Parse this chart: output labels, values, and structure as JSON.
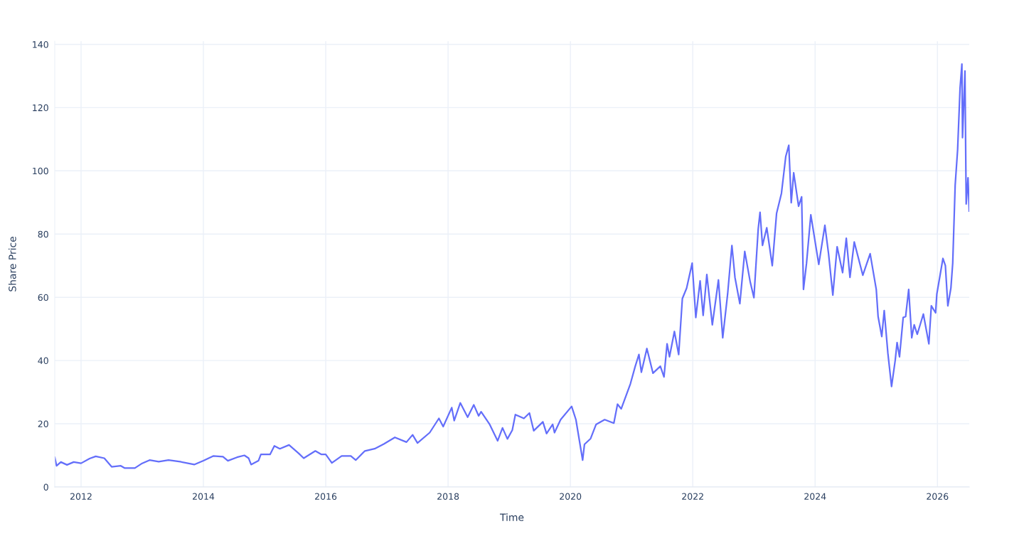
{
  "chart_data": {
    "type": "line",
    "xlabel": "Time",
    "ylabel": "Share Price",
    "series": [
      {
        "color": "#636efa",
        "x": [
          2011.57,
          2011.6,
          2011.67,
          2011.77,
          2011.88,
          2012.0,
          2012.14,
          2012.24,
          2012.38,
          2012.5,
          2012.65,
          2012.71,
          2012.88,
          2013.0,
          2013.12,
          2013.27,
          2013.43,
          2013.62,
          2013.85,
          2014.0,
          2014.16,
          2014.32,
          2014.4,
          2014.55,
          2014.67,
          2014.74,
          2014.78,
          2014.9,
          2014.94,
          2015.09,
          2015.16,
          2015.25,
          2015.4,
          2015.56,
          2015.64,
          2015.83,
          2015.93,
          2016.0,
          2016.1,
          2016.26,
          2016.41,
          2016.49,
          2016.64,
          2016.8,
          2016.95,
          2017.13,
          2017.32,
          2017.42,
          2017.5,
          2017.7,
          2017.85,
          2017.92,
          2018.06,
          2018.1,
          2018.2,
          2018.32,
          2018.42,
          2018.5,
          2018.54,
          2018.68,
          2018.81,
          2018.89,
          2018.97,
          2019.05,
          2019.1,
          2019.24,
          2019.33,
          2019.4,
          2019.55,
          2019.61,
          2019.71,
          2019.74,
          2019.84,
          2020.02,
          2020.09,
          2020.2,
          2020.23,
          2020.33,
          2020.42,
          2020.56,
          2020.71,
          2020.77,
          2020.83,
          2020.98,
          2021.06,
          2021.12,
          2021.16,
          2021.25,
          2021.35,
          2021.47,
          2021.53,
          2021.58,
          2021.62,
          2021.7,
          2021.77,
          2021.83,
          2021.9,
          2021.99,
          2022.05,
          2022.12,
          2022.17,
          2022.23,
          2022.32,
          2022.42,
          2022.49,
          2022.57,
          2022.64,
          2022.69,
          2022.77,
          2022.85,
          2022.94,
          2023.0,
          2023.07,
          2023.1,
          2023.14,
          2023.21,
          2023.3,
          2023.37,
          2023.45,
          2023.52,
          2023.57,
          2023.61,
          2023.65,
          2023.73,
          2023.78,
          2023.81,
          2023.86,
          2023.93,
          2024.06,
          2024.16,
          2024.22,
          2024.29,
          2024.36,
          2024.45,
          2024.51,
          2024.57,
          2024.64,
          2024.78,
          2024.9,
          2025.0,
          2025.03,
          2025.09,
          2025.13,
          2025.19,
          2025.25,
          2025.31,
          2025.34,
          2025.38,
          2025.44,
          2025.48,
          2025.53,
          2025.58,
          2025.62,
          2025.67,
          2025.77,
          2025.86,
          2025.9,
          2025.97,
          2025.99,
          2026.09,
          2026.13,
          2026.17,
          2026.22,
          2026.25,
          2026.29,
          2026.33,
          2026.37,
          2026.4,
          2026.41,
          2026.45,
          2026.47,
          2026.5,
          2026.52
        ],
        "values": [
          9.4,
          6.7,
          7.9,
          7.0,
          7.9,
          7.5,
          9.0,
          9.7,
          9.1,
          6.4,
          6.7,
          6.0,
          6.0,
          7.5,
          8.5,
          8.0,
          8.5,
          8.0,
          7.1,
          8.3,
          9.8,
          9.6,
          8.3,
          9.4,
          10.0,
          9.1,
          7.1,
          8.3,
          10.3,
          10.3,
          13.0,
          12.1,
          13.3,
          10.6,
          9.1,
          11.4,
          10.3,
          10.3,
          7.6,
          9.8,
          9.8,
          8.5,
          11.4,
          12.1,
          13.6,
          15.7,
          14.2,
          16.5,
          13.9,
          17.2,
          21.7,
          19.1,
          25.1,
          21.0,
          26.6,
          22.1,
          26.0,
          22.5,
          23.8,
          19.8,
          14.6,
          18.7,
          15.2,
          18.0,
          22.9,
          21.7,
          23.4,
          17.8,
          20.6,
          16.9,
          19.8,
          17.2,
          21.3,
          25.5,
          21.3,
          8.5,
          13.5,
          15.3,
          19.8,
          21.3,
          20.2,
          26.2,
          24.7,
          32.6,
          38.2,
          41.9,
          36.3,
          43.8,
          36.0,
          38.2,
          34.8,
          45.3,
          41.2,
          49.2,
          41.9,
          59.6,
          62.9,
          70.8,
          53.6,
          65.2,
          54.3,
          67.2,
          51.3,
          65.5,
          47.2,
          61.0,
          76.4,
          66.3,
          58.0,
          74.5,
          64.8,
          59.9,
          81.6,
          86.9,
          76.4,
          82.0,
          70.0,
          86.5,
          92.9,
          104.5,
          108.1,
          89.9,
          99.4,
          88.8,
          91.8,
          62.5,
          70.8,
          86.1,
          70.4,
          82.8,
          73.8,
          60.7,
          76.0,
          67.8,
          78.7,
          66.3,
          77.5,
          67.0,
          73.8,
          62.5,
          53.9,
          47.6,
          55.8,
          42.3,
          31.8,
          40.1,
          45.7,
          41.2,
          53.6,
          53.9,
          62.5,
          47.2,
          51.3,
          48.3,
          54.7,
          45.3,
          57.3,
          55.1,
          61.0,
          72.3,
          70.0,
          57.3,
          62.9,
          70.8,
          95.5,
          106.7,
          126.2,
          133.8,
          110.5,
          131.6,
          89.5,
          97.8,
          87.3
        ]
      }
    ],
    "xlim": [
      2011.57,
      2026.52
    ],
    "xticks": [
      2012,
      2014,
      2016,
      2018,
      2020,
      2022,
      2024,
      2026
    ],
    "ylim": [
      0,
      141
    ],
    "yticks": [
      0,
      20,
      40,
      60,
      80,
      100,
      120,
      140
    ],
    "grid": true
  }
}
